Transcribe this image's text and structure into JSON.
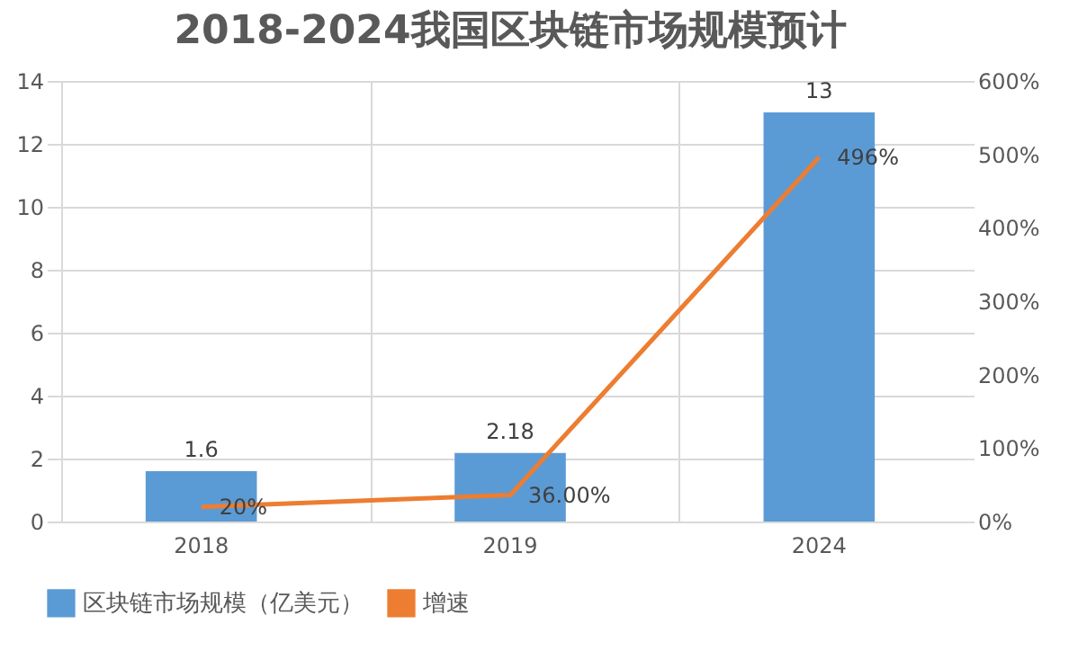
{
  "chart_data": {
    "type": "bar",
    "title": "2018-2024我国区块链市场规模预计",
    "categories": [
      "2018",
      "2019",
      "2024"
    ],
    "series": [
      {
        "name": "区块链市场规模（亿美元）",
        "color": "#5b9bd5",
        "values": [
          1.6,
          2.18,
          13
        ],
        "value_labels": [
          "1.6",
          "2.18",
          "13"
        ]
      },
      {
        "name": "增速",
        "type": "line",
        "axis": "y2",
        "color": "#ed7d31",
        "values": [
          20,
          36,
          496
        ],
        "value_labels": [
          "20%",
          "36.00%",
          "496%"
        ]
      }
    ],
    "ylim": [
      0,
      14
    ],
    "yticks": [
      0,
      2,
      4,
      6,
      8,
      10,
      12,
      14
    ],
    "y2lim": [
      0,
      600
    ],
    "y2ticks": [
      {
        "value": 0,
        "label": "0%"
      },
      {
        "value": 100,
        "label": "100%"
      },
      {
        "value": 200,
        "label": "200%"
      },
      {
        "value": 300,
        "label": "300%"
      },
      {
        "value": 400,
        "label": "400%"
      },
      {
        "value": 500,
        "label": "500%"
      },
      {
        "value": 600,
        "label": "600%"
      }
    ],
    "grid": true,
    "legend": "bottom",
    "marker": "none",
    "line_style": "solid"
  }
}
